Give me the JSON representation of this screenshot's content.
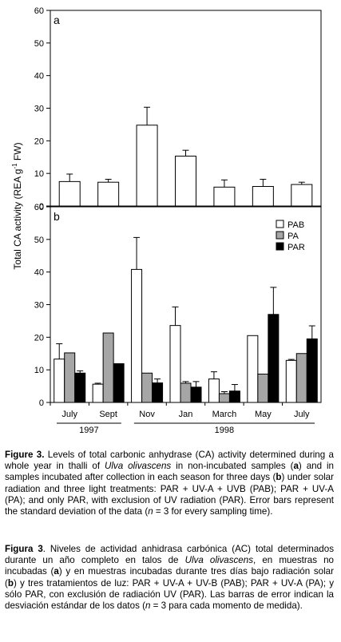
{
  "chart_data": [
    {
      "type": "bar",
      "panel_label": "a",
      "categories": [
        "July",
        "Sept",
        "Nov",
        "Jan",
        "March",
        "May",
        "July"
      ],
      "series": [
        {
          "values": [
            7.5,
            7.3,
            24.8,
            15.3,
            5.8,
            6.0,
            6.6
          ],
          "errors": [
            2.3,
            0.9,
            5.5,
            1.8,
            2.2,
            2.2,
            0.7
          ]
        }
      ],
      "ylim": [
        0,
        60
      ],
      "yticks": [
        0,
        10,
        20,
        30,
        40,
        50,
        60
      ]
    },
    {
      "type": "bar",
      "panel_label": "b",
      "categories": [
        "July",
        "Sept",
        "Nov",
        "Jan",
        "March",
        "May",
        "July"
      ],
      "series": [
        {
          "name": "PAB",
          "color": "#ffffff",
          "values": [
            13.3,
            5.6,
            40.8,
            23.6,
            7.2,
            20.5,
            12.9
          ],
          "errors": [
            4.7,
            0.3,
            9.8,
            5.7,
            2.2,
            0,
            0.3
          ]
        },
        {
          "name": "PA",
          "color": "#a6a6a6",
          "values": [
            15.2,
            21.3,
            9.0,
            5.9,
            2.7,
            8.7,
            15.0
          ],
          "errors": [
            0,
            0,
            0,
            0.5,
            0.6,
            0,
            0
          ]
        },
        {
          "name": "PAR",
          "color": "#000000",
          "values": [
            9.0,
            11.9,
            6.0,
            4.7,
            3.5,
            27.0,
            19.5
          ],
          "errors": [
            0.7,
            0,
            1.2,
            1.7,
            2.0,
            8.3,
            4.0
          ]
        }
      ],
      "ylim": [
        0,
        60
      ],
      "yticks": [
        0,
        10,
        20,
        30,
        40,
        50,
        60
      ],
      "legend_position": "top-right"
    }
  ],
  "shared": {
    "ylabel_main": "Total CA activity (REA g",
    "ylabel_sup": "-1",
    "ylabel_end": " FW)",
    "year_groups": [
      {
        "label": "1997",
        "from": 0,
        "to": 1
      },
      {
        "label": "1998",
        "from": 2,
        "to": 6
      }
    ]
  },
  "caption_en": {
    "head": "Figure 3.",
    "t1": " Levels of total carbonic anhydrase (CA) activity determined during a whole year in thalli of ",
    "species": "Ulva olivascens",
    "t2": " in non-incubated samples (",
    "a": "a",
    "t3": ") and in samples incubated after collection in each season for three days (",
    "b": "b",
    "t4": ") under solar radiation and three light treatments: PAR + UV-A + UVB (PAB); PAR + UV-A (PA); and only PAR, with exclusion of UV radiation (PAR). Error bars represent the standard deviation of the data (",
    "n": "n",
    "t5": " = 3 for every sampling time)."
  },
  "caption_es": {
    "head": "Figura 3",
    "t1": ". Niveles de actividad anhidrasa carbónica (AC) total determinados durante un año completo en talos de ",
    "species": "Ulva olivascens",
    "t2": ", en muestras no incubadas (",
    "a": "a",
    "t3": ") y en muestras incubadas durante tres días bajo radiación solar (",
    "b": "b",
    "t4": ") y tres tratamientos de luz: PAR + UV-A + UV-B (PAB); PAR + UV-A (PA); y sólo PAR, con exclusión de radiación UV (PAR). Las barras de error indican la desviación estándar de los datos (",
    "n": "n",
    "t5": " = 3 para cada momento de medida)."
  }
}
